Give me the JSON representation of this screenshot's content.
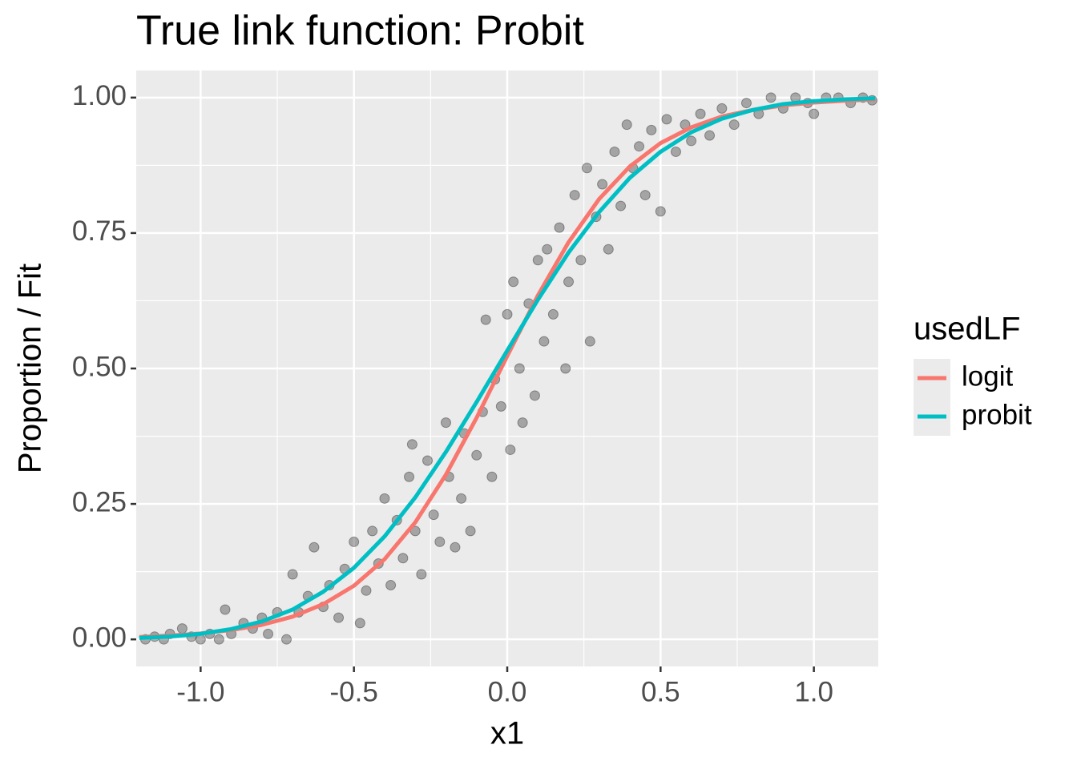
{
  "chart_data": {
    "type": "line",
    "title": "True link function: Probit",
    "xlabel": "x1",
    "ylabel": "Proportion / Fit",
    "legend_title": "usedLF",
    "x": [
      -1.2,
      -1.1,
      -1.0,
      -0.9,
      -0.8,
      -0.7,
      -0.6,
      -0.5,
      -0.4,
      -0.3,
      -0.2,
      -0.1,
      0.0,
      0.1,
      0.2,
      0.3,
      0.4,
      0.5,
      0.6,
      0.7,
      0.8,
      0.9,
      1.0,
      1.1,
      1.2
    ],
    "series": [
      {
        "name": "logit",
        "color": "#f8766d",
        "values": [
          0.0044,
          0.0069,
          0.0109,
          0.0172,
          0.0269,
          0.042,
          0.065,
          0.099,
          0.148,
          0.216,
          0.304,
          0.409,
          0.523,
          0.635,
          0.733,
          0.813,
          0.873,
          0.916,
          0.945,
          0.965,
          0.977,
          0.9857,
          0.9909,
          0.9942,
          0.9964
        ]
      },
      {
        "name": "probit",
        "color": "#00bfc4",
        "values": [
          0.0026,
          0.0053,
          0.0103,
          0.019,
          0.033,
          0.055,
          0.088,
          0.132,
          0.19,
          0.262,
          0.346,
          0.438,
          0.533,
          0.627,
          0.714,
          0.789,
          0.852,
          0.9,
          0.936,
          0.961,
          0.977,
          0.988,
          0.9935,
          0.9968,
          0.9985
        ]
      }
    ],
    "points": {
      "color": "#000000",
      "x": [
        -1.18,
        -1.15,
        -1.12,
        -1.1,
        -1.06,
        -1.03,
        -1.0,
        -0.97,
        -0.94,
        -0.92,
        -0.9,
        -0.86,
        -0.83,
        -0.8,
        -0.78,
        -0.75,
        -0.72,
        -0.7,
        -0.68,
        -0.65,
        -0.63,
        -0.6,
        -0.58,
        -0.55,
        -0.53,
        -0.5,
        -0.48,
        -0.46,
        -0.44,
        -0.42,
        -0.4,
        -0.38,
        -0.36,
        -0.34,
        -0.32,
        -0.31,
        -0.3,
        -0.28,
        -0.26,
        -0.24,
        -0.22,
        -0.2,
        -0.19,
        -0.17,
        -0.15,
        -0.14,
        -0.12,
        -0.1,
        -0.08,
        -0.07,
        -0.05,
        -0.04,
        -0.02,
        0.0,
        0.01,
        0.02,
        0.04,
        0.05,
        0.07,
        0.09,
        0.1,
        0.12,
        0.13,
        0.15,
        0.17,
        0.19,
        0.2,
        0.22,
        0.24,
        0.26,
        0.27,
        0.29,
        0.31,
        0.33,
        0.35,
        0.37,
        0.39,
        0.41,
        0.43,
        0.45,
        0.47,
        0.5,
        0.52,
        0.55,
        0.58,
        0.6,
        0.63,
        0.66,
        0.7,
        0.74,
        0.78,
        0.82,
        0.86,
        0.9,
        0.94,
        0.98,
        1.0,
        1.04,
        1.08,
        1.12,
        1.16,
        1.19
      ],
      "y": [
        0.0,
        0.005,
        0.0,
        0.01,
        0.02,
        0.005,
        0.0,
        0.01,
        0.0,
        0.055,
        0.01,
        0.03,
        0.02,
        0.04,
        0.01,
        0.05,
        0.0,
        0.12,
        0.05,
        0.08,
        0.17,
        0.06,
        0.1,
        0.04,
        0.13,
        0.18,
        0.03,
        0.09,
        0.2,
        0.14,
        0.26,
        0.1,
        0.22,
        0.15,
        0.3,
        0.36,
        0.2,
        0.12,
        0.33,
        0.23,
        0.18,
        0.4,
        0.3,
        0.17,
        0.26,
        0.38,
        0.2,
        0.34,
        0.42,
        0.59,
        0.3,
        0.48,
        0.43,
        0.6,
        0.35,
        0.66,
        0.5,
        0.4,
        0.62,
        0.45,
        0.7,
        0.55,
        0.72,
        0.6,
        0.76,
        0.5,
        0.66,
        0.82,
        0.7,
        0.87,
        0.55,
        0.78,
        0.84,
        0.72,
        0.9,
        0.8,
        0.95,
        0.87,
        0.91,
        0.82,
        0.94,
        0.79,
        0.96,
        0.9,
        0.95,
        0.92,
        0.97,
        0.93,
        0.98,
        0.95,
        0.99,
        0.97,
        1.0,
        0.98,
        1.0,
        0.99,
        0.97,
        1.0,
        1.0,
        0.99,
        1.0,
        0.995
      ]
    },
    "xlim": [
      -1.21,
      1.21
    ],
    "ylim": [
      -0.05,
      1.05
    ],
    "xticks": [
      {
        "value": -1,
        "label": "-1.0"
      },
      -0.5,
      {
        "value": 0,
        "label": "0.0"
      },
      0.5,
      {
        "value": 1,
        "label": "1.0"
      }
    ],
    "yticks": [
      {
        "value": 0,
        "label": "0.00"
      },
      0.25,
      {
        "value": 0.5,
        "label": "0.50"
      },
      0.75,
      {
        "value": 1,
        "label": "1.00"
      }
    ],
    "x_minor_grid": [
      -0.75,
      -0.25,
      0.25,
      0.75
    ],
    "y_minor_grid": [
      0.125,
      0.375,
      0.625,
      0.875
    ],
    "grid": true
  }
}
